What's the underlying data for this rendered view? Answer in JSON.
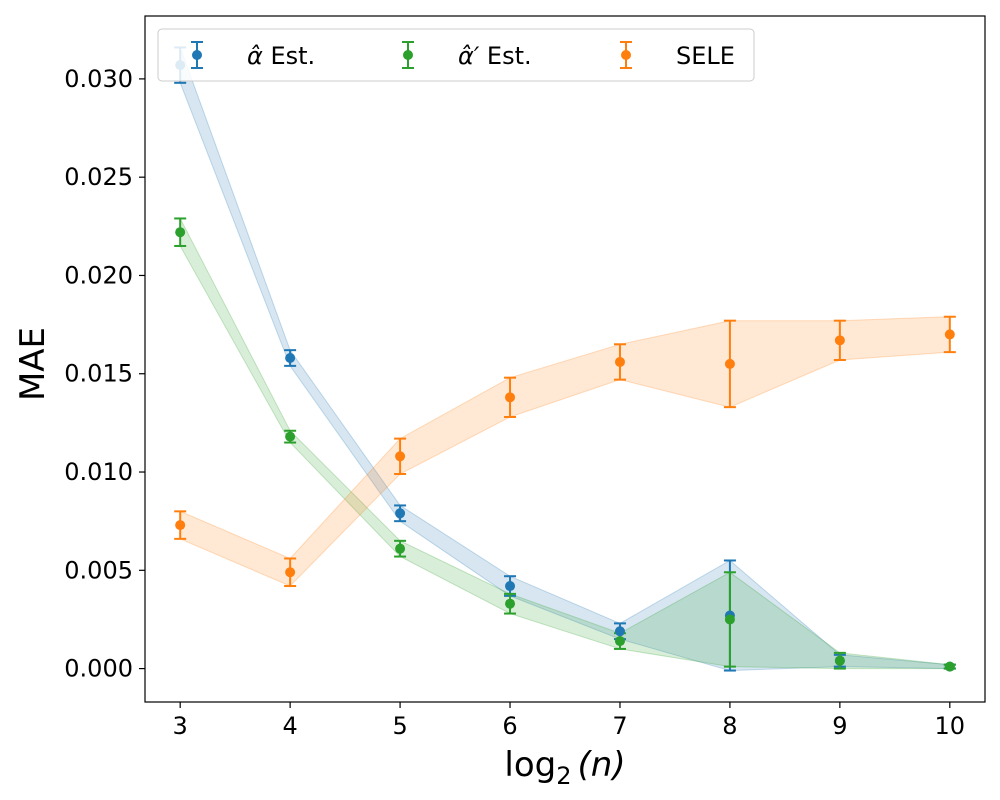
{
  "chart_data": {
    "type": "scatter",
    "title": "",
    "xlabel": "log",
    "xlabel_sub": "2",
    "xlabel_arg": "(n)",
    "ylabel": "MAE",
    "xlim": [
      2.68,
      10.32
    ],
    "ylim": [
      -0.0017,
      0.0332
    ],
    "x_ticks": [
      3,
      4,
      5,
      6,
      7,
      8,
      9,
      10
    ],
    "y_ticks": [
      0.0,
      0.005,
      0.01,
      0.015,
      0.02,
      0.025,
      0.03
    ],
    "y_tick_labels": [
      "0.000",
      "0.005",
      "0.010",
      "0.015",
      "0.020",
      "0.025",
      "0.030"
    ],
    "legend_position": "top-left",
    "x": [
      3,
      4,
      5,
      6,
      7,
      8,
      9,
      10
    ],
    "series": [
      {
        "name": "alpha-hat",
        "legend_text": "Est.",
        "legend_symbol": "α̂",
        "color": "#1f77b4",
        "values": [
          0.0307,
          0.0158,
          0.0079,
          0.0042,
          0.0019,
          0.0027,
          0.0004,
          0.0001
        ],
        "errors": [
          0.0009,
          0.0004,
          0.0004,
          0.0005,
          0.0004,
          0.0028,
          0.0003,
          0.0001
        ]
      },
      {
        "name": "alpha-hat-prime",
        "legend_text": "Est.",
        "legend_symbol": "α̂′",
        "color": "#2ca02c",
        "values": [
          0.0222,
          0.0118,
          0.0061,
          0.0033,
          0.0014,
          0.0025,
          0.0004,
          0.0001
        ],
        "errors": [
          0.0007,
          0.0003,
          0.0004,
          0.0005,
          0.0004,
          0.0024,
          0.0004,
          0.0001
        ]
      },
      {
        "name": "sele",
        "legend_text": "SELE",
        "legend_symbol": "",
        "color": "#ff7f0e",
        "values": [
          0.0073,
          0.0049,
          0.0108,
          0.0138,
          0.0156,
          0.0155,
          0.0167,
          0.017
        ],
        "errors": [
          0.0007,
          0.0007,
          0.0009,
          0.001,
          0.0009,
          0.0022,
          0.001,
          0.0009
        ]
      }
    ]
  }
}
